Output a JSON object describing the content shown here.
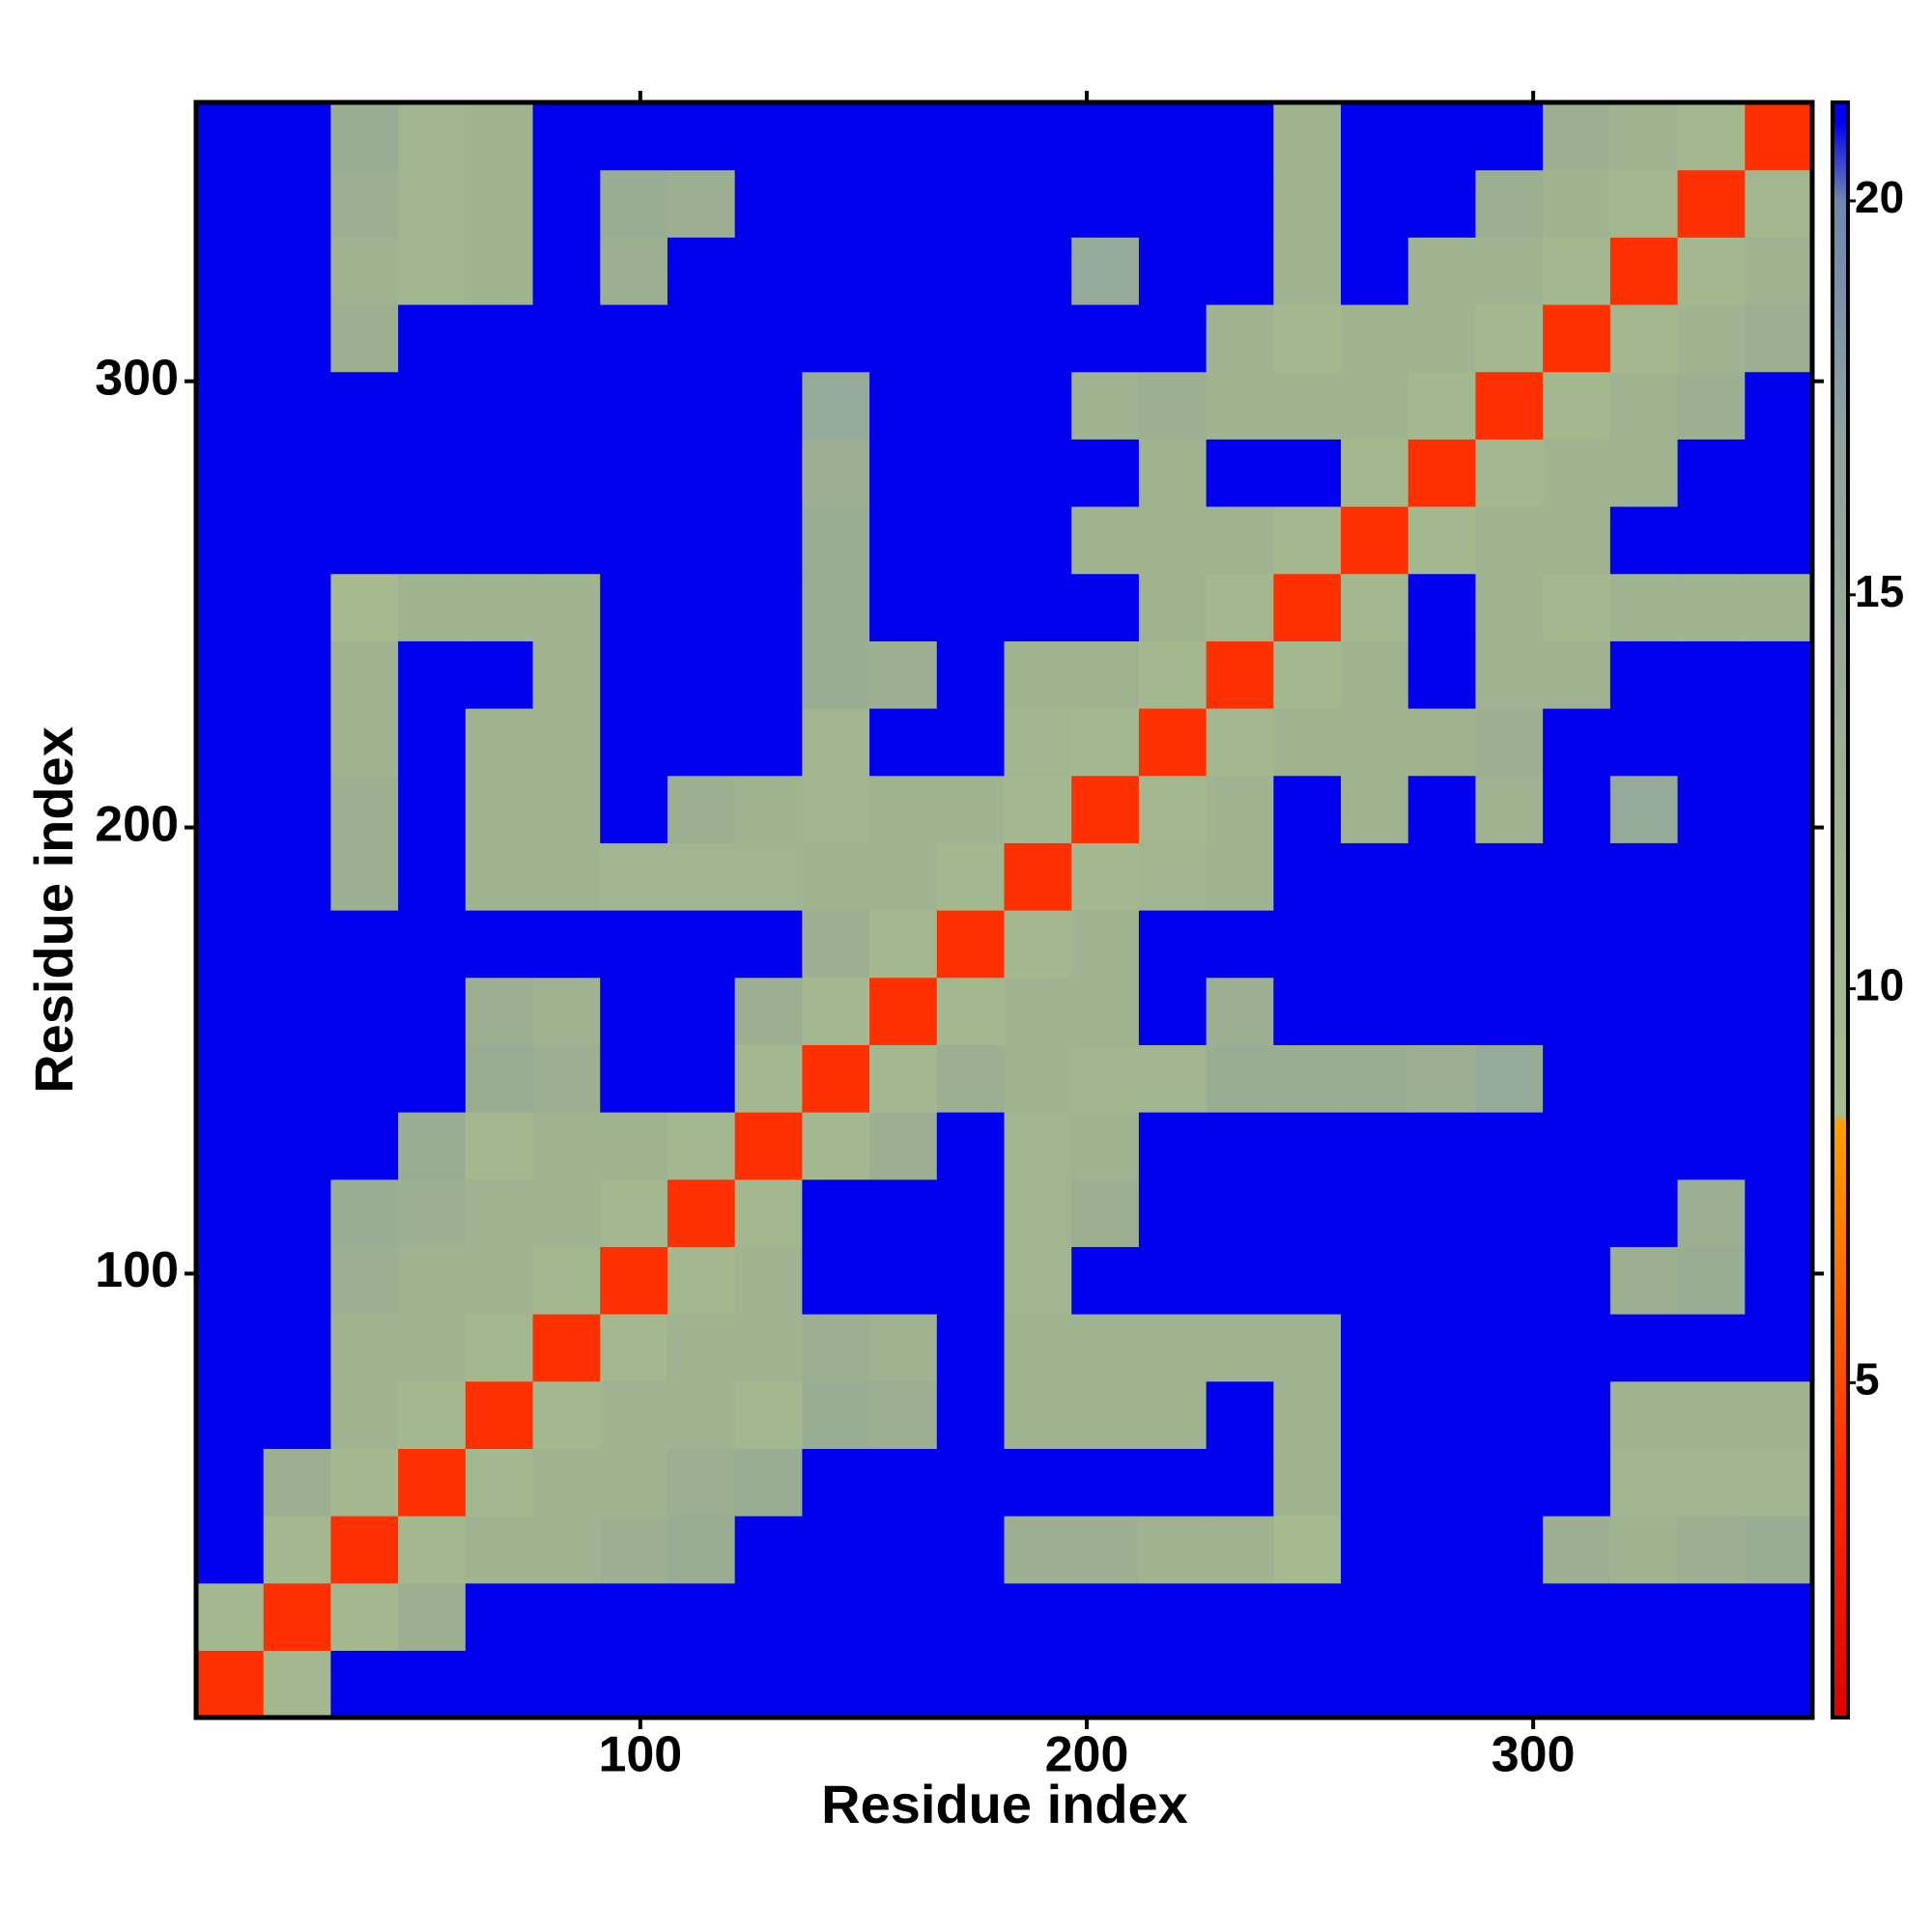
{
  "chart_data": {
    "type": "heatmap",
    "xlabel": "Residue index",
    "ylabel": "Residue index",
    "xlim": [
      0.5,
      362.5
    ],
    "ylim": [
      0.5,
      362.5
    ],
    "xticks": [
      100,
      200,
      300
    ],
    "yticks": [
      100,
      200,
      300
    ],
    "zlim": [
      0.75,
      21.25
    ],
    "colorbar_ticks": [
      5,
      10,
      15,
      20
    ],
    "colorscale": [
      [
        0.75,
        "#e00000"
      ],
      [
        4,
        "#ff3000"
      ],
      [
        7,
        "#ff8000"
      ],
      [
        8.3,
        "#ffa000"
      ],
      [
        8.4,
        "#a8bc90"
      ],
      [
        13,
        "#9cb091"
      ],
      [
        17,
        "#8fa3a0"
      ],
      [
        20,
        "#6f86b0"
      ],
      [
        21,
        "#0000ee"
      ]
    ],
    "z": [
      [
        4,
        10,
        21,
        21,
        21,
        21,
        21,
        21,
        21,
        21,
        21,
        21,
        21,
        21,
        21,
        21,
        21,
        21,
        21,
        21,
        21,
        21,
        21,
        21
      ],
      [
        10,
        4,
        10,
        13,
        21,
        21,
        21,
        21,
        21,
        21,
        21,
        21,
        21,
        21,
        21,
        21,
        21,
        21,
        21,
        21,
        21,
        21,
        21,
        21
      ],
      [
        21,
        10,
        4,
        10,
        12,
        12,
        13,
        14,
        21,
        21,
        21,
        21,
        13,
        13,
        12,
        12,
        9,
        21,
        21,
        21,
        13,
        12,
        13,
        14
      ],
      [
        21,
        13,
        10,
        4,
        10,
        12,
        12,
        13,
        14,
        21,
        21,
        21,
        21,
        21,
        21,
        21,
        12,
        21,
        21,
        21,
        21,
        11,
        11,
        11
      ],
      [
        21,
        21,
        12,
        10,
        4,
        10,
        12,
        12,
        10,
        14,
        13,
        21,
        12,
        12,
        12,
        21,
        12,
        21,
        21,
        21,
        21,
        12,
        12,
        12
      ],
      [
        21,
        21,
        12,
        12,
        10,
        4,
        10,
        12,
        12,
        13,
        12,
        21,
        12,
        12,
        12,
        12,
        12,
        21,
        21,
        21,
        21,
        21,
        21,
        21
      ],
      [
        21,
        21,
        13,
        12,
        12,
        10,
        4,
        10,
        12,
        21,
        21,
        21,
        11,
        21,
        21,
        21,
        21,
        21,
        21,
        21,
        21,
        13,
        14,
        21
      ],
      [
        21,
        21,
        14,
        13,
        12,
        12,
        10,
        4,
        10,
        21,
        21,
        21,
        11,
        13,
        21,
        21,
        21,
        21,
        21,
        21,
        21,
        21,
        13,
        21
      ],
      [
        21,
        21,
        21,
        14,
        10,
        12,
        12,
        10,
        4,
        10,
        13,
        21,
        11,
        12,
        21,
        21,
        21,
        21,
        21,
        21,
        21,
        21,
        21,
        21
      ],
      [
        21,
        21,
        21,
        21,
        14,
        13,
        21,
        21,
        10,
        4,
        10,
        13,
        12,
        11,
        11,
        14,
        14,
        14,
        13,
        15,
        21,
        21,
        21,
        21
      ],
      [
        21,
        21,
        21,
        21,
        13,
        12,
        21,
        21,
        13,
        10,
        4,
        10,
        12,
        12,
        21,
        13,
        21,
        21,
        21,
        21,
        21,
        21,
        21,
        21
      ],
      [
        21,
        21,
        21,
        21,
        21,
        21,
        21,
        21,
        21,
        13,
        10,
        4,
        10,
        12,
        21,
        21,
        21,
        21,
        21,
        21,
        21,
        21,
        21,
        21
      ],
      [
        21,
        21,
        13,
        21,
        12,
        12,
        11,
        11,
        11,
        12,
        12,
        10,
        4,
        10,
        11,
        12,
        21,
        21,
        21,
        21,
        21,
        21,
        21,
        21
      ],
      [
        21,
        21,
        13,
        21,
        12,
        12,
        21,
        13,
        12,
        11,
        12,
        12,
        10,
        4,
        10,
        12,
        21,
        12,
        21,
        12,
        21,
        15,
        21,
        21
      ],
      [
        21,
        21,
        12,
        21,
        12,
        12,
        21,
        21,
        21,
        11,
        21,
        21,
        11,
        10,
        4,
        10,
        12,
        12,
        12,
        13,
        21,
        21,
        21,
        21
      ],
      [
        21,
        21,
        12,
        21,
        21,
        12,
        21,
        21,
        21,
        14,
        13,
        21,
        12,
        12,
        10,
        4,
        10,
        12,
        21,
        12,
        12,
        21,
        21,
        21
      ],
      [
        21,
        21,
        9,
        12,
        12,
        12,
        21,
        21,
        21,
        14,
        21,
        21,
        21,
        21,
        12,
        10,
        4,
        10,
        21,
        12,
        10,
        12,
        12,
        12
      ],
      [
        21,
        21,
        21,
        21,
        21,
        21,
        21,
        21,
        21,
        14,
        21,
        21,
        21,
        12,
        12,
        12,
        10,
        4,
        10,
        12,
        12,
        21,
        21,
        21
      ],
      [
        21,
        21,
        21,
        21,
        21,
        21,
        21,
        21,
        21,
        13,
        21,
        21,
        21,
        21,
        12,
        21,
        21,
        10,
        4,
        10,
        12,
        12,
        21,
        21
      ],
      [
        21,
        21,
        21,
        21,
        21,
        21,
        21,
        21,
        21,
        15,
        21,
        21,
        21,
        12,
        13,
        12,
        12,
        12,
        10,
        4,
        10,
        12,
        13,
        21
      ],
      [
        21,
        21,
        13,
        21,
        21,
        21,
        21,
        21,
        21,
        21,
        21,
        21,
        21,
        21,
        21,
        12,
        10,
        12,
        12,
        10,
        4,
        10,
        12,
        13
      ],
      [
        21,
        21,
        12,
        11,
        12,
        21,
        13,
        21,
        21,
        21,
        21,
        21,
        21,
        15,
        21,
        21,
        12,
        21,
        12,
        12,
        10,
        4,
        10,
        12
      ],
      [
        21,
        21,
        13,
        11,
        12,
        21,
        14,
        13,
        21,
        21,
        21,
        21,
        21,
        21,
        21,
        21,
        12,
        21,
        21,
        13,
        12,
        10,
        4,
        10
      ],
      [
        21,
        21,
        14,
        11,
        12,
        21,
        21,
        21,
        21,
        21,
        21,
        21,
        21,
        21,
        21,
        21,
        12,
        21,
        21,
        21,
        13,
        12,
        10,
        4
      ]
    ]
  }
}
